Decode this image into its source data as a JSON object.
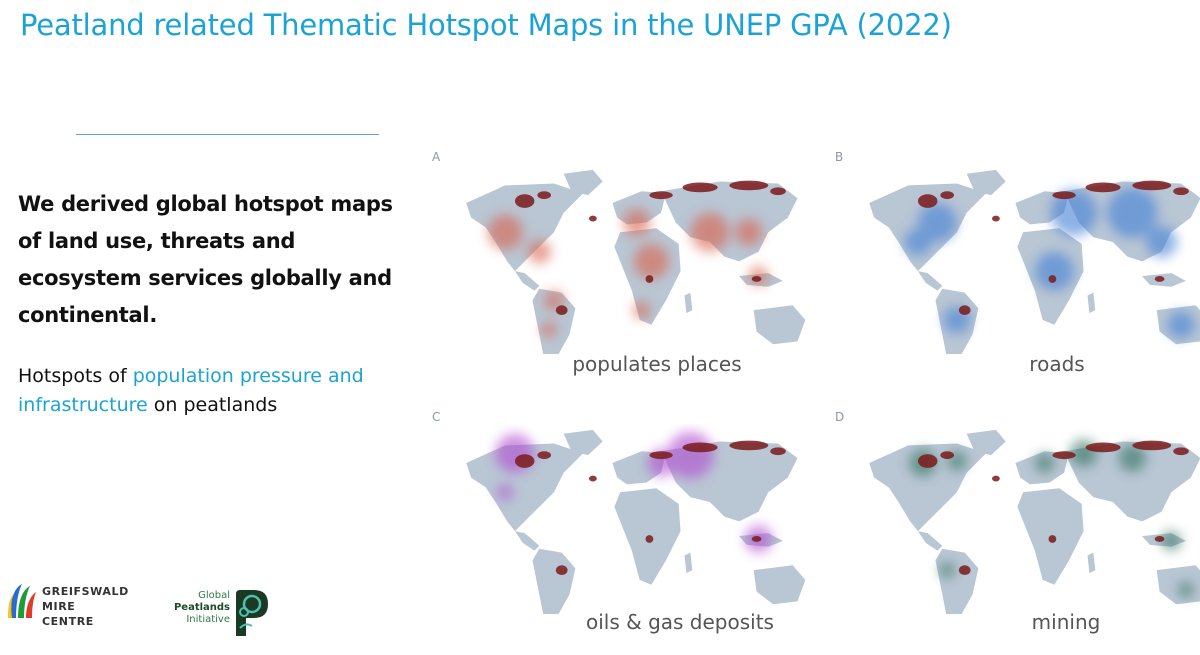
{
  "title": "Peatland related Thematic Hotspot Maps in the UNEP GPA (2022)",
  "lead": "We derived global hotspot maps of land use, threats and ecosystem services globally and continental.",
  "hotspots": {
    "prefix": "Hotspots of ",
    "highlight": "population pressure and infrastructure",
    "suffix": " on peatlands"
  },
  "panels": [
    {
      "letter": "A",
      "caption": "populates places",
      "overlay_color": "#d9604a"
    },
    {
      "letter": "B",
      "caption": "roads",
      "overlay_color": "#3f7fd6"
    },
    {
      "letter": "C",
      "caption": "oils & gas deposits",
      "overlay_color": "#b04ad0"
    },
    {
      "letter": "D",
      "caption": "mining",
      "overlay_color": "#2e6f5c"
    }
  ],
  "colors": {
    "title": "#1ca3d6",
    "land": "#b9c6d4",
    "peat": "#7a1a1a"
  },
  "logos": {
    "gmc_line1": "GREIFSWALD",
    "gmc_line2": "MIRE",
    "gmc_line3": "CENTRE",
    "gpi_line1": "Global",
    "gpi_line2": "Peatlands",
    "gpi_line3": "Initiative"
  }
}
